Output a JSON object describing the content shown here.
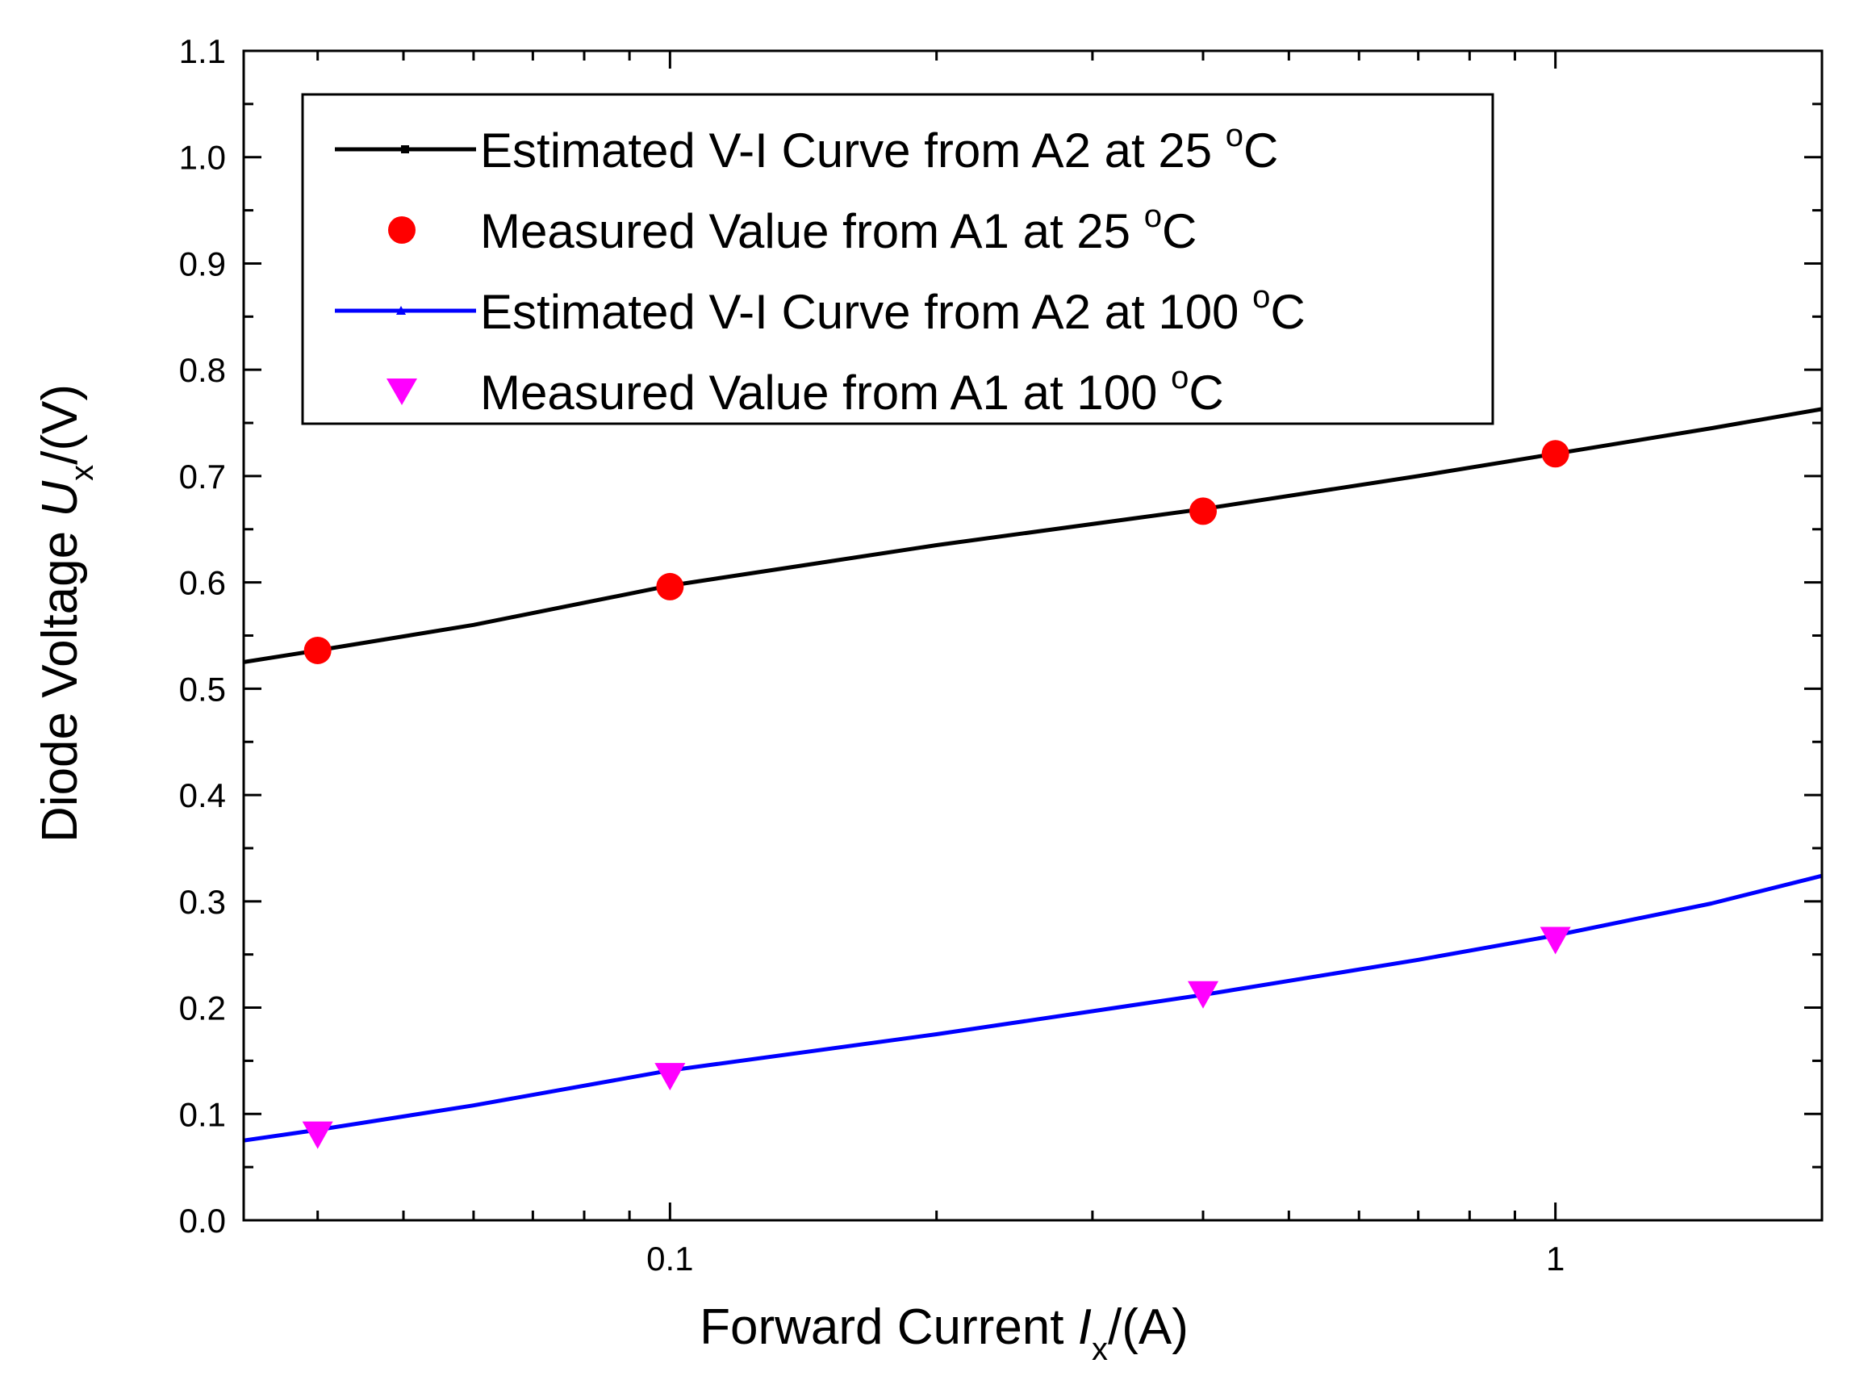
{
  "chart_data": {
    "type": "line",
    "x_scale": "log",
    "xlim": [
      0.033,
      2.0
    ],
    "ylim": [
      0.0,
      1.1
    ],
    "x_ticks": [
      0.1,
      1
    ],
    "x_tick_labels": [
      "0.1",
      "1"
    ],
    "y_ticks": [
      0.0,
      0.1,
      0.2,
      0.3,
      0.4,
      0.5,
      0.6,
      0.7,
      0.8,
      0.9,
      1.0,
      1.1
    ],
    "y_tick_labels": [
      "0.0",
      "0.1",
      "0.2",
      "0.3",
      "0.4",
      "0.5",
      "0.6",
      "0.7",
      "0.8",
      "0.9",
      "1.0",
      "1.1"
    ],
    "xlabel": {
      "main": "Forward Current ",
      "var": "I",
      "sub": "x",
      "unit": "/(A)"
    },
    "ylabel": {
      "main": "Diode Voltage ",
      "var": "U",
      "sub": "x",
      "unit": "/(V)"
    },
    "legend_position": "top-left",
    "series": [
      {
        "name": "Estimated V-I Curve from A2 at 25 °C",
        "legend": {
          "text": "Estimated V-I Curve from A2 at 25 ",
          "sup": "o",
          "end": "C"
        },
        "kind": "line",
        "color": "#000000",
        "x": [
          0.033,
          0.04,
          0.06,
          0.1,
          0.2,
          0.4,
          0.7,
          1.0,
          1.5,
          2.0
        ],
        "y": [
          0.525,
          0.536,
          0.56,
          0.597,
          0.635,
          0.669,
          0.7,
          0.721,
          0.745,
          0.763
        ]
      },
      {
        "name": "Measured Value from A1 at 25 °C",
        "legend": {
          "text": "Measured Value from A1 at 25 ",
          "sup": "o",
          "end": "C"
        },
        "kind": "scatter",
        "marker": "circle",
        "color": "#ff0000",
        "x": [
          0.04,
          0.1,
          0.4,
          1.0
        ],
        "y": [
          0.536,
          0.596,
          0.667,
          0.721
        ]
      },
      {
        "name": "Estimated V-I Curve from A2 at 100 °C",
        "legend": {
          "text": "Estimated V-I Curve from A2 at 100 ",
          "sup": "o",
          "end": "C"
        },
        "kind": "line",
        "color": "#0000ff",
        "x": [
          0.033,
          0.04,
          0.06,
          0.1,
          0.2,
          0.4,
          0.7,
          1.0,
          1.5,
          2.0
        ],
        "y": [
          0.075,
          0.085,
          0.108,
          0.141,
          0.175,
          0.212,
          0.245,
          0.268,
          0.298,
          0.324
        ]
      },
      {
        "name": "Measured Value from A1 at 100 °C",
        "legend": {
          "text": "Measured Value from A1 at 100 ",
          "sup": "o",
          "end": "C"
        },
        "kind": "scatter",
        "marker": "triangle-down",
        "color": "#ff00ff",
        "x": [
          0.04,
          0.1,
          0.4,
          1.0
        ],
        "y": [
          0.08,
          0.135,
          0.212,
          0.263
        ]
      }
    ]
  }
}
